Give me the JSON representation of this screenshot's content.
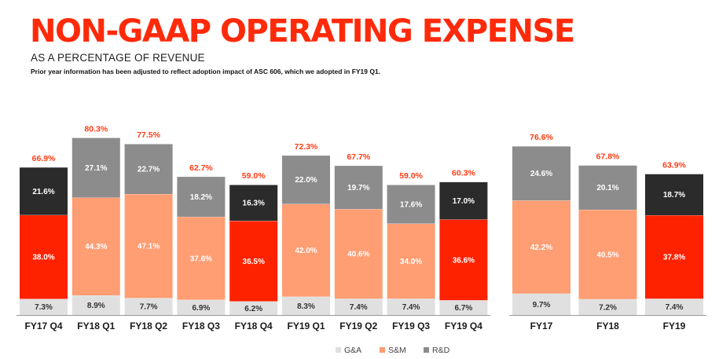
{
  "header": {
    "title": "NON-GAAP OPERATING EXPENSE",
    "subtitle": "AS A PERCENTAGE OF REVENUE",
    "footnote": "Prior year information has been adjusted to reflect adoption impact of ASC 606, which we adopted  in FY19 Q1."
  },
  "colors": {
    "ga": "#e0e0e0",
    "sm": "#ff9d73",
    "rd": "#8c8c8c",
    "highlight_sm": "#ff2200",
    "highlight_rd": "#2b2b2b",
    "total_label": "#ff3c14"
  },
  "chart_data": [
    {
      "type": "bar",
      "stacked": true,
      "categories": [
        "FY17 Q4",
        "FY18 Q1",
        "FY18 Q2",
        "FY18 Q3",
        "FY18 Q4",
        "FY19 Q1",
        "FY19 Q2",
        "FY19 Q3",
        "FY19 Q4"
      ],
      "highlighted": [
        "FY17 Q4",
        "FY18 Q4",
        "FY19 Q4"
      ],
      "series": [
        {
          "name": "G&A",
          "key": "ga",
          "values": [
            7.3,
            8.9,
            7.7,
            6.9,
            6.2,
            8.3,
            7.4,
            7.4,
            6.7
          ],
          "labels": [
            "7.3%",
            "8.9%",
            "7.7%",
            "6.9%",
            "6.2%",
            "8.3%",
            "7.4%",
            "7.4%",
            "6.7%"
          ]
        },
        {
          "name": "S&M",
          "key": "sm",
          "values": [
            38.0,
            44.3,
            47.1,
            37.6,
            36.5,
            42.0,
            40.6,
            34.0,
            36.6
          ],
          "labels": [
            "38.0%",
            "44.3%",
            "47.1%",
            "37.6%",
            "36.5%",
            "42.0%",
            "40.6%",
            "34.0%",
            "36.6%"
          ]
        },
        {
          "name": "R&D",
          "key": "rd",
          "values": [
            21.6,
            27.1,
            22.7,
            18.2,
            16.3,
            22.0,
            19.7,
            17.6,
            17.0
          ],
          "labels": [
            "21.6%",
            "27.1%",
            "22.7%",
            "18.2%",
            "16.3%",
            "22.0%",
            "19.7%",
            "17.6%",
            "17.0%"
          ]
        }
      ],
      "totals": [
        66.9,
        80.3,
        77.5,
        62.7,
        59.0,
        72.3,
        67.7,
        59.0,
        60.3
      ],
      "total_labels": [
        "66.9%",
        "80.3%",
        "77.5%",
        "62.7%",
        "59.0%",
        "72.3%",
        "67.7%",
        "59.0%",
        "60.3%"
      ]
    },
    {
      "type": "bar",
      "stacked": true,
      "categories": [
        "FY17",
        "FY18",
        "FY19"
      ],
      "highlighted": [
        "FY19"
      ],
      "series": [
        {
          "name": "G&A",
          "key": "ga",
          "values": [
            9.7,
            7.2,
            7.4
          ],
          "labels": [
            "9.7%",
            "7.2%",
            "7.4%"
          ]
        },
        {
          "name": "S&M",
          "key": "sm",
          "values": [
            42.2,
            40.5,
            37.8
          ],
          "labels": [
            "42.2%",
            "40.5%",
            "37.8%"
          ]
        },
        {
          "name": "R&D",
          "key": "rd",
          "values": [
            24.6,
            20.1,
            18.7
          ],
          "labels": [
            "24.6%",
            "20.1%",
            "18.7%"
          ]
        }
      ],
      "totals": [
        76.6,
        67.8,
        63.9
      ],
      "total_labels": [
        "76.6%",
        "67.8%",
        "63.9%"
      ]
    }
  ],
  "legend": [
    {
      "label": "G&A",
      "key": "ga"
    },
    {
      "label": "S&M",
      "key": "sm"
    },
    {
      "label": "R&D",
      "key": "rd"
    }
  ]
}
